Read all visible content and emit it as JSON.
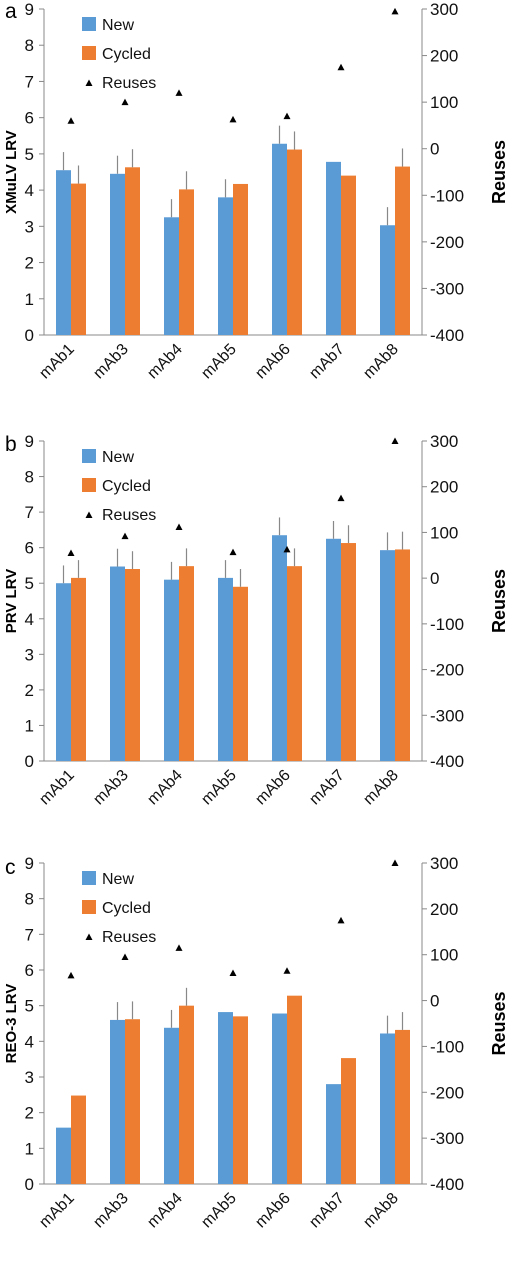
{
  "chart_data": [
    {
      "type": "bar",
      "panel_label": "a",
      "ylabel": "XMuLV LRV",
      "y2label": "Reuses",
      "categories": [
        "mAb1",
        "mAb3",
        "mAb4",
        "mAb5",
        "mAb6",
        "mAb7",
        "mAb8"
      ],
      "ylim": [
        0,
        9
      ],
      "y2lim": [
        -400,
        300
      ],
      "yticks": [
        "0",
        "1",
        "2",
        "3",
        "4",
        "5",
        "6",
        "7",
        "8",
        "9"
      ],
      "y2ticks": [
        "-400",
        "-300",
        "-200",
        "-100",
        "0",
        "100",
        "200",
        "300"
      ],
      "series": [
        {
          "name": "New",
          "color": "#5B9BD5",
          "values": [
            4.55,
            4.45,
            3.25,
            3.8,
            5.28,
            4.78,
            3.03
          ],
          "errors": [
            0.5,
            0.5,
            0.5,
            0.5,
            0.5,
            0,
            0.5
          ]
        },
        {
          "name": "Cycled",
          "color": "#ED7D31",
          "values": [
            4.18,
            4.63,
            4.02,
            4.17,
            5.12,
            4.4,
            4.65
          ],
          "errors": [
            0.5,
            0.5,
            0.5,
            0,
            0.5,
            0,
            0.5
          ]
        }
      ],
      "reuses": {
        "name": "Reuses",
        "values": [
          60,
          100,
          120,
          63,
          70,
          175,
          295
        ]
      },
      "grid": false,
      "legend": "top-left"
    },
    {
      "type": "bar",
      "panel_label": "b",
      "ylabel": "PRV LRV",
      "y2label": "Reuses",
      "categories": [
        "mAb1",
        "mAb3",
        "mAb4",
        "mAb5",
        "mAb6",
        "mAb7",
        "mAb8"
      ],
      "ylim": [
        0,
        9
      ],
      "y2lim": [
        -400,
        300
      ],
      "yticks": [
        "0",
        "1",
        "2",
        "3",
        "4",
        "5",
        "6",
        "7",
        "8",
        "9"
      ],
      "y2ticks": [
        "-400",
        "-300",
        "-200",
        "-100",
        "0",
        "100",
        "200",
        "300"
      ],
      "series": [
        {
          "name": "New",
          "color": "#5B9BD5",
          "values": [
            5.0,
            5.47,
            5.1,
            5.15,
            6.35,
            6.25,
            5.93
          ],
          "errors": [
            0.5,
            0.5,
            0.5,
            0.5,
            0.5,
            0.5,
            0.5
          ]
        },
        {
          "name": "Cycled",
          "color": "#ED7D31",
          "values": [
            5.15,
            5.4,
            5.48,
            4.9,
            5.48,
            6.13,
            5.95
          ],
          "errors": [
            0.5,
            0.5,
            0.5,
            0.5,
            0.5,
            0.5,
            0.5
          ]
        }
      ],
      "reuses": {
        "name": "Reuses",
        "values": [
          55,
          92,
          112,
          57,
          63,
          175,
          300
        ]
      },
      "grid": false,
      "legend": "top-left"
    },
    {
      "type": "bar",
      "panel_label": "c",
      "ylabel": "REO-3 LRV",
      "y2label": "Reuses",
      "categories": [
        "mAb1",
        "mAb3",
        "mAb4",
        "mAb5",
        "mAb6",
        "mAb7",
        "mAb8"
      ],
      "ylim": [
        0,
        9
      ],
      "y2lim": [
        -400,
        300
      ],
      "yticks": [
        "0",
        "1",
        "2",
        "3",
        "4",
        "5",
        "6",
        "7",
        "8",
        "9"
      ],
      "y2ticks": [
        "-400",
        "-300",
        "-200",
        "-100",
        "0",
        "100",
        "200",
        "300"
      ],
      "series": [
        {
          "name": "New",
          "color": "#5B9BD5",
          "values": [
            1.58,
            4.6,
            4.38,
            4.82,
            4.78,
            2.8,
            4.22
          ],
          "errors": [
            0,
            0.5,
            0.5,
            0,
            0,
            0,
            0.5
          ]
        },
        {
          "name": "Cycled",
          "color": "#ED7D31",
          "values": [
            2.48,
            4.62,
            5.0,
            4.7,
            5.28,
            3.53,
            4.32
          ],
          "errors": [
            0,
            0.5,
            0.5,
            0,
            0,
            0,
            0.5
          ]
        }
      ],
      "reuses": {
        "name": "Reuses",
        "values": [
          55,
          95,
          115,
          60,
          65,
          175,
          300
        ]
      },
      "grid": false,
      "legend": "top-left"
    }
  ]
}
